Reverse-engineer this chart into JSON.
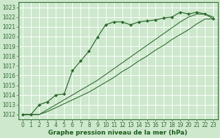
{
  "bg_color": "#cde8cd",
  "grid_color": "#ffffff",
  "line_color": "#2d6a2d",
  "marker_color": "#2d6a2d",
  "xlabel": "Graphe pression niveau de la mer (hPa)",
  "xlabel_color": "#1a5c1a",
  "xlabel_fontsize": 6.5,
  "tick_color": "#2d6a2d",
  "tick_fontsize": 5.5,
  "ylim": [
    1011.5,
    1023.5
  ],
  "yticks": [
    1012,
    1013,
    1014,
    1015,
    1016,
    1017,
    1018,
    1019,
    1020,
    1021,
    1022,
    1023
  ],
  "xlim": [
    -0.5,
    23.5
  ],
  "xticks": [
    0,
    1,
    2,
    3,
    4,
    5,
    6,
    7,
    8,
    9,
    10,
    11,
    12,
    13,
    14,
    15,
    16,
    17,
    18,
    19,
    20,
    21,
    22,
    23
  ],
  "series1": [
    1012.0,
    1012.0,
    1013.0,
    1013.3,
    1014.0,
    1014.1,
    1016.5,
    1017.5,
    1018.5,
    1019.9,
    1021.2,
    1021.5,
    1021.5,
    1021.2,
    1021.5,
    1021.6,
    1021.7,
    1021.9,
    1022.0,
    1022.5,
    1022.3,
    1022.5,
    1022.3,
    1021.8
  ],
  "series2": [
    1012.0,
    1012.0,
    1012.0,
    1012.3,
    1012.7,
    1013.1,
    1013.5,
    1013.9,
    1014.3,
    1014.8,
    1015.3,
    1015.8,
    1016.4,
    1016.9,
    1017.5,
    1018.0,
    1018.6,
    1019.1,
    1019.7,
    1020.2,
    1020.7,
    1021.3,
    1021.8,
    1021.8
  ],
  "series3": [
    1012.0,
    1012.0,
    1012.0,
    1012.5,
    1013.0,
    1013.5,
    1014.0,
    1014.5,
    1015.0,
    1015.5,
    1016.1,
    1016.7,
    1017.3,
    1017.9,
    1018.5,
    1019.1,
    1019.7,
    1020.3,
    1020.9,
    1021.5,
    1022.0,
    1022.3,
    1022.3,
    1022.0
  ]
}
